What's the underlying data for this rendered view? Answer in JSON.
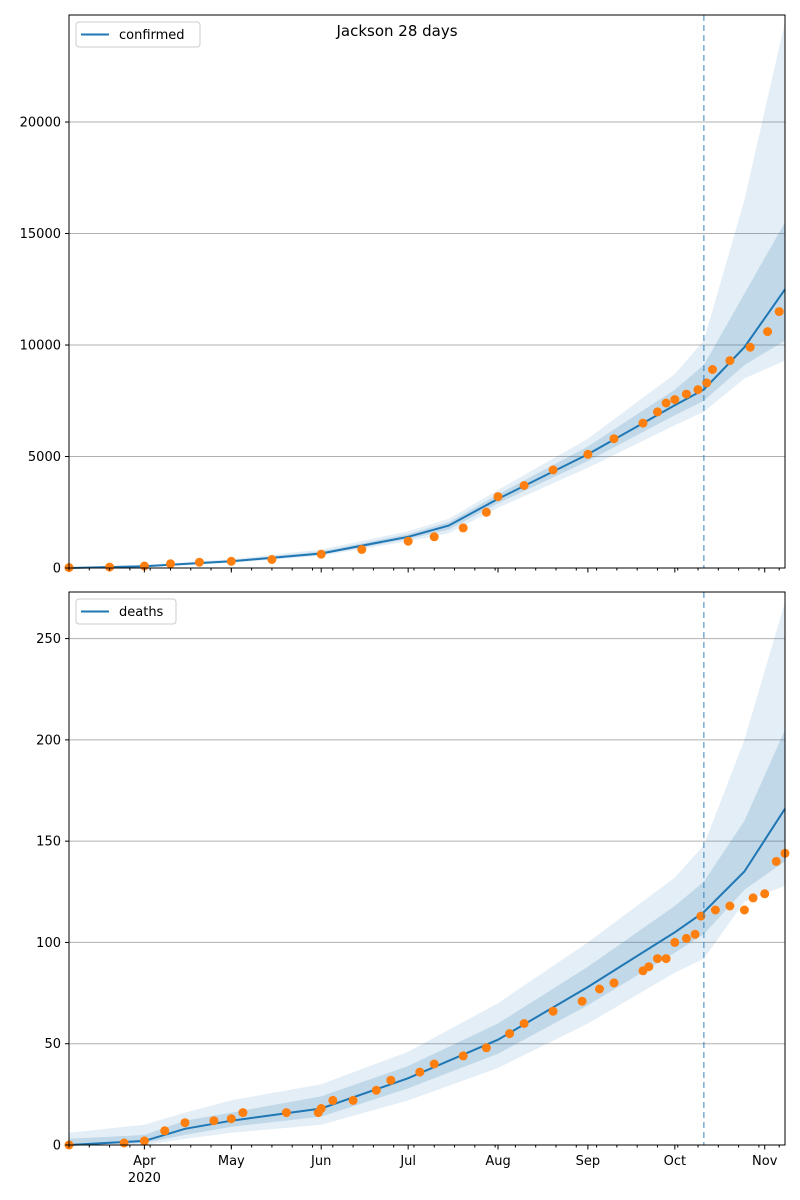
{
  "title": "Jackson 28 days",
  "colors": {
    "model": "#1f77b4",
    "observed": "#ff7f0e",
    "band": "#1f77b4",
    "grid": "#b0b0b0",
    "cutoff": "#1f77b4"
  },
  "x_axis": {
    "start": "2020-03-06",
    "end": "2020-11-08",
    "cutoff_date": "2020-10-11",
    "ticks": [
      {
        "date": "2020-04-01",
        "label": "Apr"
      },
      {
        "date": "2020-05-01",
        "label": "May"
      },
      {
        "date": "2020-06-01",
        "label": "Jun"
      },
      {
        "date": "2020-07-01",
        "label": "Jul"
      },
      {
        "date": "2020-08-01",
        "label": "Aug"
      },
      {
        "date": "2020-09-01",
        "label": "Sep"
      },
      {
        "date": "2020-10-01",
        "label": "Oct"
      },
      {
        "date": "2020-11-01",
        "label": "Nov"
      }
    ],
    "year_label": "2020"
  },
  "chart_data": [
    {
      "type": "line",
      "legend": "confirmed",
      "legend_position": "top-left",
      "grid": true,
      "ylim": [
        0,
        24800
      ],
      "yticks": [
        0,
        5000,
        10000,
        15000,
        20000
      ],
      "model": {
        "x": [
          "2020-03-06",
          "2020-04-01",
          "2020-05-01",
          "2020-06-01",
          "2020-07-01",
          "2020-07-15",
          "2020-08-01",
          "2020-09-01",
          "2020-10-01",
          "2020-10-11",
          "2020-10-25",
          "2020-11-08"
        ],
        "y": [
          0,
          80,
          300,
          650,
          1400,
          1900,
          3100,
          5100,
          7300,
          8000,
          9900,
          12500
        ]
      },
      "band_outer": {
        "lower": [
          0,
          30,
          230,
          550,
          1200,
          1550,
          2700,
          4500,
          6400,
          7000,
          8500,
          9300
        ],
        "upper": [
          0,
          130,
          400,
          830,
          1650,
          2200,
          3500,
          5800,
          8700,
          10200,
          16500,
          24500
        ]
      },
      "band_inner": {
        "lower": [
          0,
          55,
          265,
          600,
          1300,
          1720,
          2900,
          4800,
          6850,
          7500,
          9100,
          10200
        ],
        "upper": [
          0,
          105,
          340,
          740,
          1520,
          2050,
          3300,
          5450,
          8000,
          9100,
          12300,
          15500
        ]
      },
      "observed": {
        "x": [
          "2020-03-06",
          "2020-03-20",
          "2020-04-01",
          "2020-04-10",
          "2020-04-20",
          "2020-05-01",
          "2020-05-15",
          "2020-06-01",
          "2020-06-15",
          "2020-07-01",
          "2020-07-10",
          "2020-07-20",
          "2020-07-28",
          "2020-08-01",
          "2020-08-10",
          "2020-08-20",
          "2020-09-01",
          "2020-09-10",
          "2020-09-20",
          "2020-09-25",
          "2020-09-28",
          "2020-10-01",
          "2020-10-05",
          "2020-10-09",
          "2020-10-12",
          "2020-10-14",
          "2020-10-20",
          "2020-10-27",
          "2020-11-02",
          "2020-11-06"
        ],
        "y": [
          20,
          40,
          90,
          190,
          260,
          300,
          380,
          620,
          830,
          1200,
          1400,
          1800,
          2500,
          3200,
          3700,
          4400,
          5100,
          5800,
          6500,
          7000,
          7400,
          7550,
          7800,
          8000,
          8300,
          8900,
          9300,
          9900,
          10600,
          11500
        ]
      }
    },
    {
      "type": "line",
      "legend": "deaths",
      "legend_position": "top-left",
      "grid": true,
      "ylim": [
        0,
        273
      ],
      "yticks": [
        0,
        50,
        100,
        150,
        200,
        250
      ],
      "model": {
        "x": [
          "2020-03-06",
          "2020-04-01",
          "2020-04-15",
          "2020-05-01",
          "2020-06-01",
          "2020-07-01",
          "2020-08-01",
          "2020-09-01",
          "2020-10-01",
          "2020-10-11",
          "2020-10-25",
          "2020-11-08"
        ],
        "y": [
          0,
          2,
          8,
          12,
          18,
          33,
          52,
          78,
          105,
          115,
          135,
          166
        ]
      },
      "band_outer": {
        "lower": [
          0,
          0,
          3,
          6,
          10,
          22,
          38,
          60,
          85,
          92,
          120,
          128
        ],
        "upper": [
          6,
          10,
          16,
          22,
          30,
          46,
          70,
          100,
          132,
          148,
          200,
          268
        ]
      },
      "band_inner": {
        "lower": [
          0,
          1,
          5,
          9,
          14,
          28,
          45,
          69,
          95,
          104,
          126,
          140
        ],
        "upper": [
          3,
          5,
          12,
          16,
          24,
          39,
          60,
          88,
          118,
          130,
          160,
          205
        ]
      },
      "observed": {
        "x": [
          "2020-03-06",
          "2020-03-25",
          "2020-04-01",
          "2020-04-08",
          "2020-04-15",
          "2020-04-25",
          "2020-05-01",
          "2020-05-05",
          "2020-05-20",
          "2020-05-31",
          "2020-06-01",
          "2020-06-05",
          "2020-06-12",
          "2020-06-20",
          "2020-06-25",
          "2020-07-05",
          "2020-07-10",
          "2020-07-20",
          "2020-07-28",
          "2020-08-05",
          "2020-08-10",
          "2020-08-20",
          "2020-08-30",
          "2020-09-05",
          "2020-09-10",
          "2020-09-20",
          "2020-09-22",
          "2020-09-25",
          "2020-09-28",
          "2020-10-01",
          "2020-10-05",
          "2020-10-08",
          "2020-10-10",
          "2020-10-15",
          "2020-10-20",
          "2020-10-25",
          "2020-10-28",
          "2020-11-01",
          "2020-11-05",
          "2020-11-08"
        ],
        "y": [
          0,
          1,
          2,
          7,
          11,
          12,
          13,
          16,
          16,
          16,
          18,
          22,
          22,
          27,
          32,
          36,
          40,
          44,
          48,
          55,
          60,
          66,
          71,
          77,
          80,
          86,
          88,
          92,
          92,
          100,
          102,
          104,
          113,
          116,
          118,
          116,
          122,
          124,
          140,
          144
        ]
      }
    }
  ]
}
